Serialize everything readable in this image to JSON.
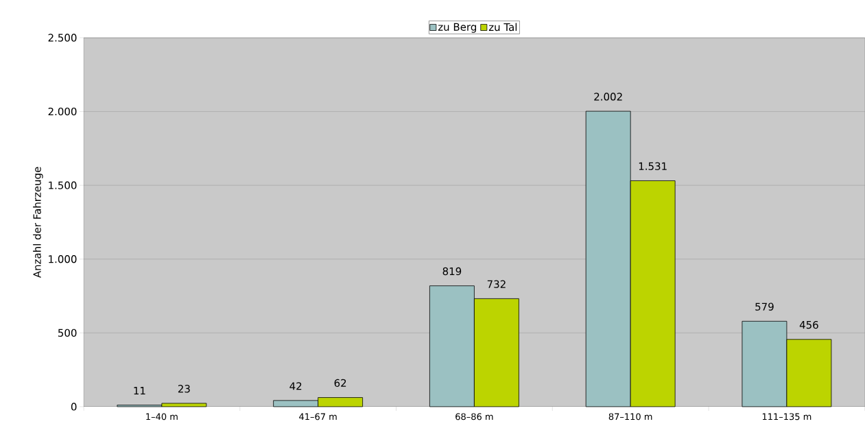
{
  "chart_data": {
    "type": "bar",
    "ylabel": "Anzahl der Fahrzeuge",
    "categories": [
      "1–40 m",
      "41–67 m",
      "68–86 m",
      "87–110 m",
      "111–135 m"
    ],
    "series": [
      {
        "name": "zu Berg",
        "color": "#9bc1c2",
        "values": [
          11,
          42,
          819,
          2002,
          579
        ],
        "value_labels": [
          "11",
          "42",
          "819",
          "2.002",
          "579"
        ]
      },
      {
        "name": "zu Tal",
        "color": "#bcd400",
        "values": [
          23,
          62,
          732,
          1531,
          456
        ],
        "value_labels": [
          "23",
          "62",
          "732",
          "1.531",
          "456"
        ]
      }
    ],
    "ylim": [
      0,
      2500
    ],
    "yticks": [
      0,
      {
        "value": 500,
        "label": "500"
      },
      {
        "value": 1000,
        "label": "1.000"
      },
      {
        "value": 1500,
        "label": "1.500"
      },
      {
        "value": 2000,
        "label": "2.000"
      },
      {
        "value": 2500,
        "label": "2.500"
      }
    ],
    "grid": "y",
    "legend": "top"
  }
}
